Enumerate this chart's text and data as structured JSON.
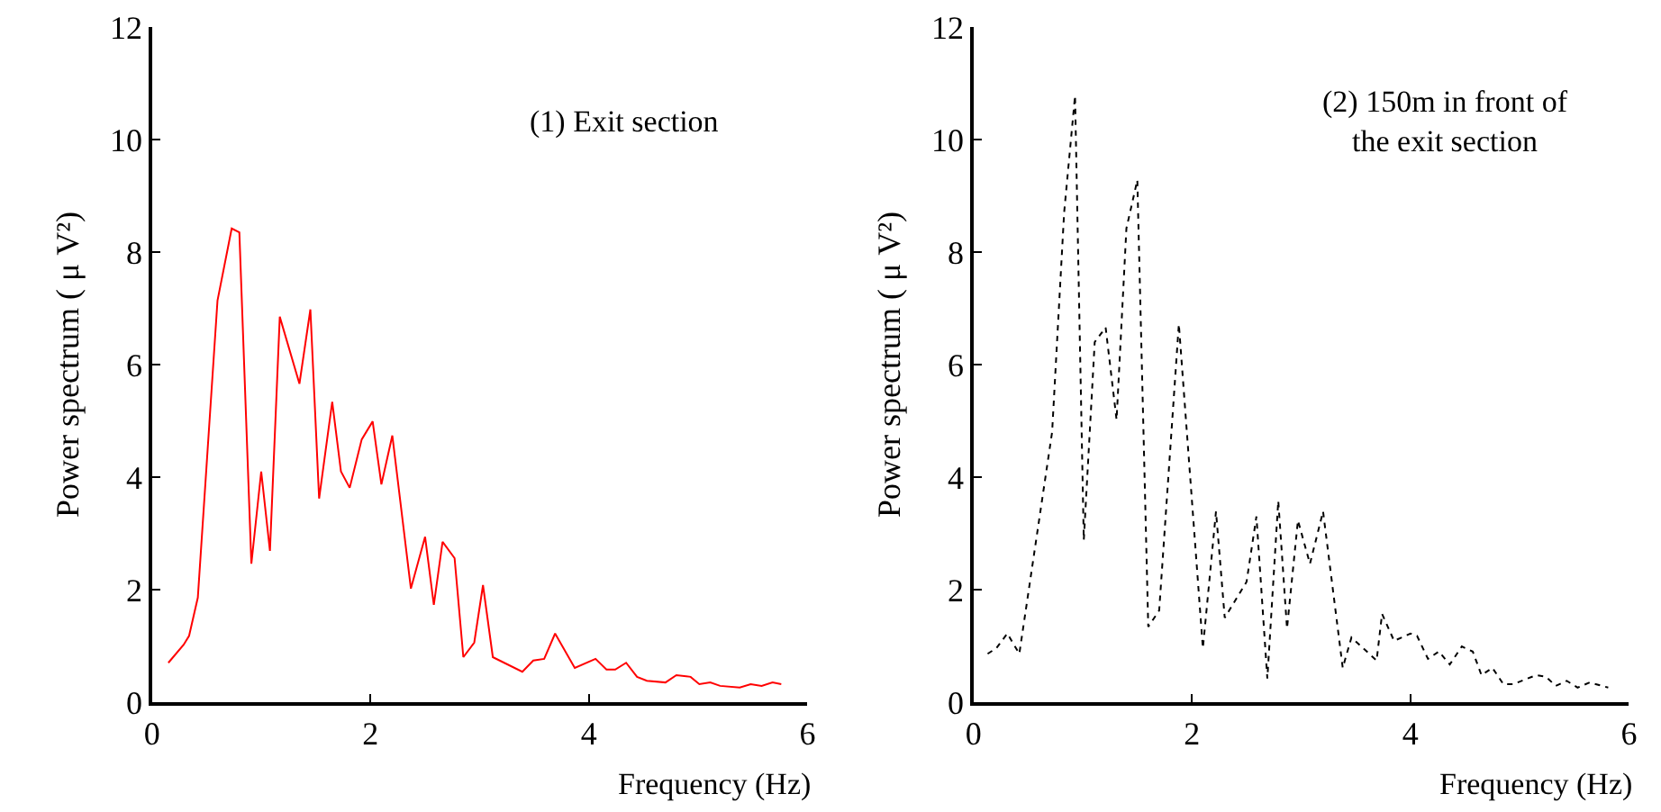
{
  "chart_data": [
    {
      "type": "line",
      "xlabel": "Frequency (Hz)",
      "ylabel": "Power spectrum ( μ V²)",
      "xlim": [
        0,
        6
      ],
      "ylim": [
        0,
        12
      ],
      "xticks": [
        0,
        2,
        4,
        6
      ],
      "yticks": [
        0,
        2,
        4,
        6,
        8,
        10,
        12
      ],
      "line_style": "solid",
      "annotations": [
        "(1) Exit section"
      ],
      "series": [
        {
          "color": "#ff0000",
          "x": [
            0.15,
            0.29,
            0.34,
            0.42,
            0.6,
            0.73,
            0.8,
            0.91,
            1.0,
            1.08,
            1.17,
            1.35,
            1.45,
            1.53,
            1.65,
            1.73,
            1.81,
            1.92,
            2.02,
            2.1,
            2.2,
            2.37,
            2.5,
            2.58,
            2.66,
            2.77,
            2.85,
            2.95,
            3.03,
            3.12,
            3.39,
            3.49,
            3.59,
            3.69,
            3.87,
            4.06,
            4.16,
            4.24,
            4.34,
            4.44,
            4.53,
            4.7,
            4.8,
            4.93,
            5.01,
            5.11,
            5.2,
            5.38,
            5.48,
            5.58,
            5.68,
            5.76
          ],
          "values": [
            0.7,
            1.02,
            1.18,
            1.86,
            7.14,
            8.42,
            8.35,
            2.46,
            4.1,
            2.69,
            6.85,
            5.66,
            6.98,
            3.62,
            5.34,
            4.1,
            3.81,
            4.67,
            4.99,
            3.87,
            4.74,
            2.02,
            2.94,
            1.73,
            2.85,
            2.56,
            0.8,
            1.06,
            2.08,
            0.8,
            0.54,
            0.74,
            0.77,
            1.22,
            0.61,
            0.77,
            0.58,
            0.58,
            0.7,
            0.45,
            0.38,
            0.35,
            0.48,
            0.45,
            0.32,
            0.35,
            0.29,
            0.26,
            0.32,
            0.29,
            0.35,
            0.32
          ]
        }
      ]
    },
    {
      "type": "line",
      "xlabel": "Frequency (Hz)",
      "ylabel": "Power spectrum ( μ V²)",
      "xlim": [
        0,
        6
      ],
      "ylim": [
        0,
        12
      ],
      "xticks": [
        0,
        2,
        4,
        6
      ],
      "yticks": [
        0,
        2,
        4,
        6,
        8,
        10,
        12
      ],
      "line_style": "dotted",
      "annotations": [
        "(2) 150m in front of\nthe exit section"
      ],
      "series": [
        {
          "color": "#000000",
          "x": [
            0.13,
            0.21,
            0.31,
            0.42,
            0.72,
            0.83,
            0.93,
            1.01,
            1.11,
            1.21,
            1.31,
            1.4,
            1.5,
            1.6,
            1.7,
            1.88,
            2.1,
            2.22,
            2.3,
            2.5,
            2.59,
            2.69,
            2.79,
            2.87,
            2.97,
            3.08,
            3.2,
            3.38,
            3.46,
            3.69,
            3.74,
            3.85,
            4.0,
            4.06,
            4.16,
            4.26,
            4.36,
            4.47,
            4.57,
            4.65,
            4.75,
            4.85,
            4.94,
            5.15,
            5.24,
            5.33,
            5.43,
            5.53,
            5.64,
            5.81
          ],
          "values": [
            0.86,
            0.96,
            1.22,
            0.86,
            4.8,
            8.7,
            10.78,
            2.88,
            6.4,
            6.66,
            5.02,
            8.42,
            9.28,
            1.34,
            1.63,
            6.72,
            0.96,
            3.39,
            1.5,
            2.14,
            3.3,
            0.42,
            3.58,
            1.31,
            3.23,
            2.46,
            3.39,
            0.61,
            1.15,
            0.74,
            1.57,
            1.09,
            1.22,
            1.18,
            0.77,
            0.9,
            0.67,
            0.99,
            0.9,
            0.48,
            0.61,
            0.32,
            0.32,
            0.48,
            0.45,
            0.29,
            0.38,
            0.26,
            0.35,
            0.26
          ]
        }
      ]
    }
  ]
}
